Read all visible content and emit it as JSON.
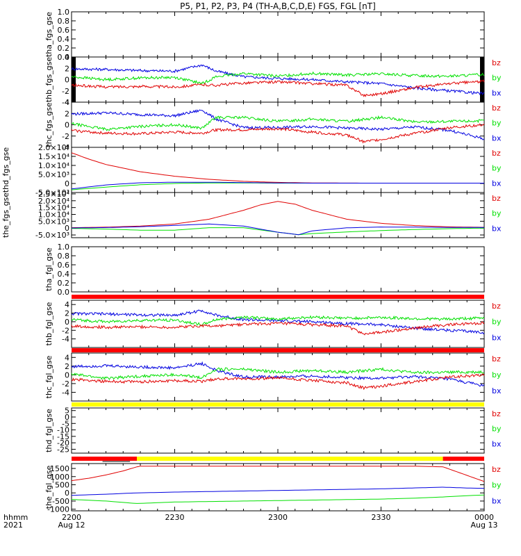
{
  "title": "P5, P1, P2, P3, P4 (TH-A,B,C,D,E) FGS, FGL [nT]",
  "x_axis": {
    "row1_label": "hhmm",
    "row2_label": "2021",
    "ticks": [
      {
        "label": "2200",
        "sub": "Aug 12",
        "t": 0
      },
      {
        "label": "2230",
        "sub": "",
        "t": 30
      },
      {
        "label": "2300",
        "sub": "",
        "t": 60
      },
      {
        "label": "2330",
        "sub": "",
        "t": 90
      },
      {
        "label": "0000",
        "sub": "Aug 13",
        "t": 120
      }
    ],
    "range_minutes": [
      0,
      120
    ]
  },
  "colors": {
    "bx": "#0000e0",
    "by": "#00e000",
    "bz": "#e00000",
    "flag_red": "#ff0000",
    "flag_yellow": "#ffff00",
    "flag_black": "#000000"
  },
  "chart_data": [
    {
      "type": "line",
      "ylabel": "tha_fgs_gse",
      "ylim": [
        0,
        1
      ],
      "ytick_labels": [
        "0.0",
        "0.2",
        "0.4",
        "0.6",
        "0.8",
        "1.0"
      ],
      "legend": [],
      "series": []
    },
    {
      "type": "line",
      "ylabel": "thb_fgs_gse",
      "ylim": [
        -4,
        4
      ],
      "ytick_labels": [
        "-4",
        "-2",
        "0",
        "2",
        "4"
      ],
      "legend": [
        "bz",
        "by",
        "bx"
      ],
      "edge_blocks": "black",
      "series": [
        {
          "name": "bx",
          "x": [
            0,
            10,
            20,
            30,
            38,
            42,
            50,
            60,
            70,
            80,
            90,
            100,
            110,
            120
          ],
          "y": [
            1.9,
            1.8,
            1.6,
            1.5,
            2.6,
            1.5,
            0.5,
            0.2,
            0.0,
            -0.4,
            -0.7,
            -1.5,
            -2.0,
            -2.5
          ]
        },
        {
          "name": "by",
          "x": [
            0,
            10,
            20,
            30,
            38,
            42,
            50,
            60,
            70,
            80,
            90,
            100,
            110,
            120
          ],
          "y": [
            0.5,
            0.0,
            0.3,
            0.4,
            -0.7,
            0.5,
            1.1,
            0.6,
            1.1,
            0.8,
            1.0,
            0.7,
            0.6,
            0.9
          ]
        },
        {
          "name": "bz",
          "x": [
            0,
            10,
            20,
            30,
            38,
            42,
            50,
            60,
            70,
            80,
            85,
            90,
            100,
            110,
            120
          ],
          "y": [
            -1.0,
            -1.3,
            -1.2,
            -1.3,
            -0.9,
            -1.0,
            -0.6,
            -0.4,
            -0.7,
            -1.0,
            -2.8,
            -2.5,
            -1.4,
            -0.7,
            -0.3
          ]
        }
      ]
    },
    {
      "type": "line",
      "ylabel": "thc_fgs_gse",
      "ylim": [
        -4,
        4
      ],
      "ytick_labels": [
        "-4",
        "-2",
        "0",
        "2",
        "4"
      ],
      "legend": [
        "bz",
        "by",
        "bx"
      ],
      "series": [
        {
          "name": "bx",
          "x": [
            0,
            10,
            20,
            30,
            38,
            42,
            50,
            60,
            70,
            80,
            90,
            100,
            110,
            120
          ],
          "y": [
            1.9,
            2.1,
            1.8,
            1.6,
            2.6,
            1.0,
            -0.5,
            -0.5,
            -0.3,
            -0.6,
            -0.8,
            -0.4,
            -1.0,
            -2.5
          ]
        },
        {
          "name": "by",
          "x": [
            0,
            10,
            20,
            30,
            38,
            42,
            50,
            60,
            70,
            80,
            90,
            100,
            110,
            120
          ],
          "y": [
            0.2,
            -0.8,
            -0.3,
            0.0,
            -0.6,
            1.3,
            1.3,
            0.6,
            1.0,
            0.6,
            1.3,
            0.5,
            0.6,
            0.7
          ]
        },
        {
          "name": "bz",
          "x": [
            0,
            10,
            20,
            30,
            38,
            42,
            50,
            60,
            70,
            80,
            85,
            90,
            100,
            110,
            120
          ],
          "y": [
            -1.0,
            -1.5,
            -1.6,
            -1.3,
            -1.5,
            -0.9,
            -0.9,
            -0.7,
            -1.3,
            -1.8,
            -3.0,
            -2.6,
            -1.5,
            -0.5,
            0.0
          ]
        }
      ]
    },
    {
      "type": "line",
      "ylabel": "thd_fgs_gse",
      "ylim": [
        -5000,
        20000
      ],
      "ytick_labels": [
        "-5.0×10³",
        "0",
        "5.0×10³",
        "1.0×10⁴",
        "1.5×10⁴",
        "2.0×10⁴"
      ],
      "legend": [
        "bz",
        "by",
        "bx"
      ],
      "series": [
        {
          "name": "bz",
          "x": [
            0,
            5,
            10,
            20,
            30,
            40,
            50,
            60,
            70,
            85,
            100,
            120
          ],
          "y": [
            17000,
            13500,
            10500,
            6500,
            4000,
            2300,
            1200,
            600,
            300,
            200,
            200,
            200
          ]
        },
        {
          "name": "by",
          "x": [
            0,
            10,
            20,
            30,
            40,
            50,
            60,
            70,
            85,
            100,
            120
          ],
          "y": [
            -3500,
            -2000,
            -700,
            0,
            300,
            300,
            200,
            200,
            200,
            200,
            200
          ]
        },
        {
          "name": "bx",
          "x": [
            0,
            10,
            20,
            30,
            40,
            50,
            60,
            70,
            85,
            100,
            120
          ],
          "y": [
            -3000,
            -800,
            400,
            700,
            700,
            500,
            300,
            200,
            200,
            200,
            200
          ]
        }
      ]
    },
    {
      "type": "line",
      "ylabel": "the_fgs_gse",
      "ylim": [
        -7000,
        26000
      ],
      "ytick_labels": [
        "-5.0×10³",
        "0",
        "5.0×10³",
        "1.0×10⁴",
        "1.5×10⁴",
        "2.0×10⁴",
        "2.5×10⁴"
      ],
      "legend": [
        "bz",
        "by",
        "bx"
      ],
      "series": [
        {
          "name": "bz",
          "x": [
            0,
            10,
            20,
            30,
            40,
            50,
            55,
            60,
            65,
            70,
            80,
            90,
            100,
            110,
            120
          ],
          "y": [
            300,
            700,
            1500,
            3000,
            6500,
            13000,
            17000,
            19500,
            17500,
            13000,
            6500,
            3500,
            1800,
            900,
            600
          ]
        },
        {
          "name": "by",
          "x": [
            0,
            10,
            20,
            30,
            40,
            50,
            60,
            66,
            70,
            80,
            90,
            100,
            110,
            120
          ],
          "y": [
            -200,
            -700,
            -1500,
            -1500,
            300,
            300,
            -3000,
            -4800,
            -4000,
            -2800,
            -1800,
            -1000,
            -400,
            0
          ]
        },
        {
          "name": "bx",
          "x": [
            0,
            10,
            20,
            30,
            40,
            50,
            60,
            66,
            70,
            80,
            90,
            100,
            110,
            120
          ],
          "y": [
            100,
            400,
            1000,
            2000,
            3000,
            1500,
            -3000,
            -4800,
            -2000,
            200,
            800,
            700,
            500,
            500
          ]
        }
      ]
    },
    {
      "type": "line",
      "ylabel": "tha_fgl_gse",
      "ylim": [
        0,
        1
      ],
      "ytick_labels": [
        "0.0",
        "0.2",
        "0.4",
        "0.6",
        "0.8",
        "1.0"
      ],
      "legend": [],
      "series": [],
      "flag_bar": [
        {
          "from": 0,
          "to": 120,
          "color": "red"
        }
      ]
    },
    {
      "type": "line",
      "ylabel": "thb_fgl_gse",
      "ylim": [
        -6,
        5
      ],
      "ytick_labels": [
        "-4",
        "-2",
        "0",
        "2",
        "4"
      ],
      "legend": [
        "bz",
        "by",
        "bx"
      ],
      "series": [
        {
          "name": "bx",
          "x": [
            0,
            10,
            20,
            30,
            38,
            42,
            50,
            60,
            70,
            80,
            90,
            100,
            110,
            120
          ],
          "y": [
            1.9,
            1.8,
            1.6,
            1.5,
            2.6,
            1.5,
            0.5,
            0.2,
            0.0,
            -0.4,
            -0.7,
            -1.5,
            -2.0,
            -2.5
          ]
        },
        {
          "name": "by",
          "x": [
            0,
            10,
            20,
            30,
            38,
            42,
            50,
            60,
            70,
            80,
            90,
            100,
            110,
            120
          ],
          "y": [
            0.5,
            0.0,
            0.3,
            0.4,
            -0.7,
            0.5,
            1.1,
            0.6,
            1.1,
            0.8,
            1.0,
            0.7,
            0.6,
            0.9
          ]
        },
        {
          "name": "bz",
          "x": [
            0,
            10,
            20,
            30,
            38,
            42,
            50,
            60,
            70,
            80,
            85,
            90,
            100,
            110,
            120
          ],
          "y": [
            -1.0,
            -1.3,
            -1.2,
            -1.3,
            -0.9,
            -1.0,
            -0.6,
            -0.4,
            -0.7,
            -1.0,
            -2.8,
            -2.5,
            -1.4,
            -0.7,
            -0.3
          ]
        }
      ],
      "flag_bar": [
        {
          "from": 0,
          "to": 120,
          "color": "red"
        }
      ]
    },
    {
      "type": "line",
      "ylabel": "thc_fgl_gse",
      "ylim": [
        -6,
        5
      ],
      "ytick_labels": [
        "-4",
        "-2",
        "0",
        "2",
        "4"
      ],
      "legend": [
        "bz",
        "by",
        "bx"
      ],
      "series": [
        {
          "name": "bx",
          "x": [
            0,
            10,
            20,
            30,
            38,
            42,
            50,
            60,
            70,
            80,
            90,
            100,
            110,
            120
          ],
          "y": [
            1.9,
            2.1,
            1.8,
            1.6,
            2.6,
            1.0,
            -0.5,
            -0.5,
            -0.3,
            -0.6,
            -0.8,
            -0.4,
            -1.0,
            -2.5
          ]
        },
        {
          "name": "by",
          "x": [
            0,
            10,
            20,
            30,
            38,
            42,
            50,
            60,
            70,
            80,
            90,
            100,
            110,
            120
          ],
          "y": [
            0.2,
            -0.8,
            -0.3,
            0.0,
            -0.6,
            1.3,
            1.3,
            0.6,
            1.0,
            0.6,
            1.3,
            0.5,
            0.6,
            0.7
          ]
        },
        {
          "name": "bz",
          "x": [
            0,
            10,
            20,
            30,
            38,
            42,
            50,
            60,
            70,
            80,
            85,
            90,
            100,
            110,
            120
          ],
          "y": [
            -1.0,
            -1.5,
            -1.6,
            -1.3,
            -1.5,
            -0.9,
            -0.9,
            -0.7,
            -1.3,
            -1.8,
            -3.0,
            -2.6,
            -1.5,
            -0.5,
            0.0
          ]
        }
      ],
      "flag_bar": [
        {
          "from": 0,
          "to": 120,
          "color": "yellow"
        }
      ]
    },
    {
      "type": "line",
      "ylabel": "thd_fgl_gse",
      "ylim": [
        -28,
        7
      ],
      "ytick_labels": [
        "-25",
        "-20",
        "-15",
        "-10",
        "-5",
        "0",
        "5"
      ],
      "legend": [
        "bz",
        "by",
        "bx"
      ],
      "series": [],
      "flag_bar": [
        {
          "from": 0,
          "to": 19,
          "color": "red"
        },
        {
          "from": 19,
          "to": 108,
          "color": "yellow"
        },
        {
          "from": 108,
          "to": 120,
          "color": "red"
        }
      ],
      "flag_ticks_black": [
        {
          "from": 9,
          "to": 17
        }
      ]
    },
    {
      "type": "line",
      "ylabel": "the_fgl_gse",
      "ylim": [
        -1100,
        1800
      ],
      "ytick_labels": [
        "-1000",
        "-500",
        "0",
        "500",
        "1000",
        "1500"
      ],
      "legend": [
        "bz",
        "by",
        "bx"
      ],
      "series": [
        {
          "name": "bz",
          "x": [
            0,
            5,
            10,
            15,
            19,
            20,
            60,
            100,
            108,
            112,
            116,
            120
          ],
          "y": [
            750,
            900,
            1100,
            1350,
            1600,
            1640,
            1640,
            1640,
            1600,
            1300,
            1000,
            700
          ]
        },
        {
          "name": "bx",
          "x": [
            0,
            10,
            19,
            30,
            60,
            90,
            108,
            115,
            120
          ],
          "y": [
            -150,
            -80,
            0,
            50,
            150,
            250,
            350,
            300,
            280
          ]
        },
        {
          "name": "by",
          "x": [
            0,
            10,
            19,
            30,
            60,
            90,
            100,
            108,
            115,
            120
          ],
          "y": [
            -400,
            -500,
            -650,
            -560,
            -470,
            -380,
            -320,
            -250,
            -170,
            -130
          ]
        }
      ]
    }
  ]
}
